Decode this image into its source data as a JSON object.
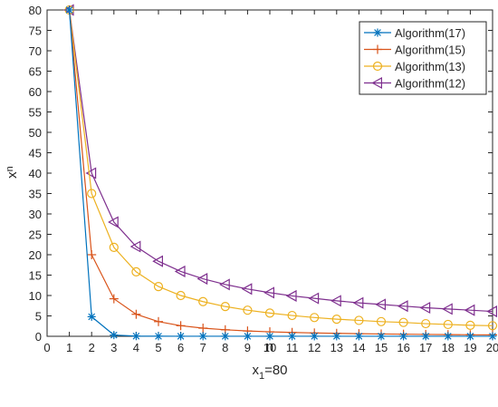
{
  "chart_data": {
    "type": "line",
    "x": [
      1,
      2,
      3,
      4,
      5,
      6,
      7,
      8,
      9,
      10,
      11,
      12,
      13,
      14,
      15,
      16,
      17,
      18,
      19,
      20
    ],
    "xlim": [
      0,
      20
    ],
    "ylim": [
      0,
      80
    ],
    "xticks": [
      0,
      1,
      2,
      3,
      4,
      5,
      6,
      7,
      8,
      9,
      10,
      11,
      12,
      13,
      14,
      15,
      16,
      17,
      18,
      19,
      20
    ],
    "yticks": [
      0,
      5,
      10,
      15,
      20,
      25,
      30,
      35,
      40,
      45,
      50,
      55,
      60,
      65,
      70,
      75,
      80
    ],
    "xlabel": "n",
    "ylabel": "x",
    "ylabel_subscript": "n",
    "caption": {
      "main": "x",
      "sub": "1",
      "rest": "=80"
    },
    "grid": false,
    "legend_position": "top-right",
    "series": [
      {
        "name": "Algorithm(17)",
        "color": "#0072BD",
        "marker": "star",
        "values": [
          80,
          4.8,
          0.3,
          0.05,
          0.02,
          0.01,
          0.01,
          0.01,
          0.01,
          0.01,
          0.01,
          0.01,
          0.01,
          0.01,
          0.01,
          0.01,
          0.01,
          0.01,
          0.01,
          0.01
        ]
      },
      {
        "name": "Algorithm(15)",
        "color": "#D95319",
        "marker": "plus",
        "values": [
          80,
          20,
          9.2,
          5.4,
          3.6,
          2.6,
          2.0,
          1.6,
          1.3,
          1.1,
          0.95,
          0.82,
          0.72,
          0.64,
          0.57,
          0.51,
          0.46,
          0.42,
          0.38,
          0.35
        ]
      },
      {
        "name": "Algorithm(13)",
        "color": "#EDB120",
        "marker": "circle",
        "values": [
          80,
          35,
          21.8,
          15.8,
          12.2,
          10.0,
          8.5,
          7.3,
          6.4,
          5.7,
          5.1,
          4.6,
          4.2,
          3.9,
          3.6,
          3.4,
          3.1,
          2.9,
          2.7,
          2.6
        ]
      },
      {
        "name": "Algorithm(12)",
        "color": "#7E2F8E",
        "marker": "triangle-left",
        "values": [
          80,
          40,
          28,
          22,
          18.4,
          15.9,
          14.1,
          12.7,
          11.6,
          10.7,
          9.9,
          9.3,
          8.7,
          8.2,
          7.8,
          7.4,
          7.0,
          6.7,
          6.4,
          6.1
        ]
      }
    ]
  }
}
